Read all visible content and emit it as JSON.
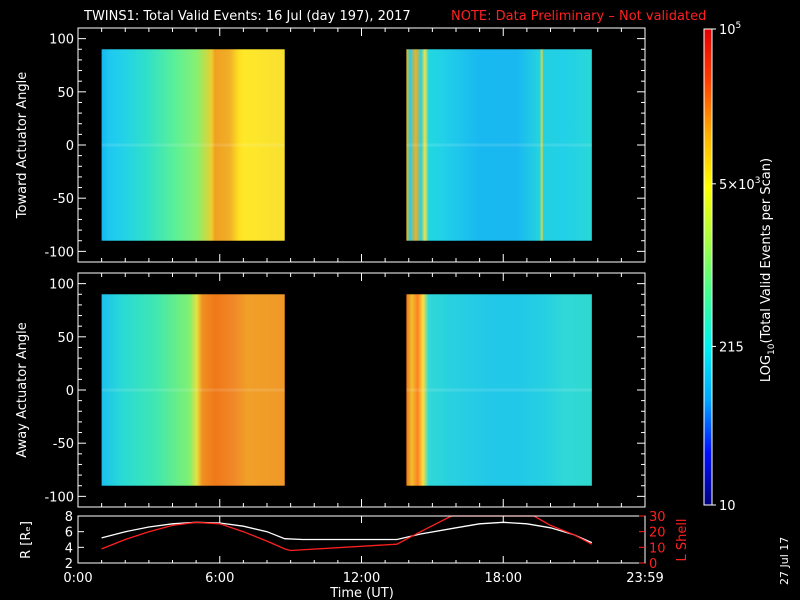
{
  "title": "TWINS1: Total Valid Events: 16 Jul (day 197), 2017",
  "note": "NOTE: Data Preliminary – Not validated",
  "footer_date": "27 Jul 17",
  "colors": {
    "note": "#ff2020",
    "line_red": "#ff2020",
    "line_white": "#ffffff",
    "background": "#000000"
  },
  "chart_data": [
    {
      "type": "heatmap",
      "ylabel": "Toward Actuator Angle",
      "ylim": [
        -110,
        110
      ],
      "yticks": [
        100,
        50,
        0,
        -50,
        -100
      ],
      "xlim": [
        0,
        24
      ],
      "grid": false,
      "segments": [
        {
          "x": [
            1.0,
            8.75
          ],
          "y": [
            -90,
            90
          ],
          "columns": [
            [
              0,
              "#16b8f0"
            ],
            [
              0.04,
              "#1ec8f0"
            ],
            [
              0.12,
              "#22d2e8"
            ],
            [
              0.25,
              "#30e0c8"
            ],
            [
              0.4,
              "#5af098"
            ],
            [
              0.52,
              "#88f070"
            ],
            [
              0.6,
              "#e8d030"
            ],
            [
              0.62,
              "#f0a020"
            ],
            [
              0.7,
              "#f0b028"
            ],
            [
              0.75,
              "#ffe020"
            ],
            [
              0.78,
              "#ffe82a"
            ],
            [
              1,
              "#f8e030"
            ]
          ]
        },
        {
          "x": [
            13.9,
            21.75
          ],
          "y": [
            -90,
            90
          ],
          "columns": [
            [
              0,
              "#e8c020"
            ],
            [
              0.02,
              "#30c8e0"
            ],
            [
              0.05,
              "#f0b020"
            ],
            [
              0.08,
              "#2ad0e0"
            ],
            [
              0.1,
              "#f8e040"
            ],
            [
              0.12,
              "#20d8e0"
            ],
            [
              0.2,
              "#22d0e8"
            ],
            [
              0.4,
              "#18b8f0"
            ],
            [
              0.6,
              "#1ab8f0"
            ],
            [
              0.72,
              "#24d4e0"
            ],
            [
              0.73,
              "#f0d030"
            ],
            [
              0.74,
              "#22d0e0"
            ],
            [
              0.85,
              "#22d0e8"
            ],
            [
              1,
              "#28d8d8"
            ]
          ]
        }
      ]
    },
    {
      "type": "heatmap",
      "ylabel": "Away Actuator Angle",
      "ylim": [
        -110,
        110
      ],
      "yticks": [
        100,
        50,
        0,
        -50,
        -100
      ],
      "xlim": [
        0,
        24
      ],
      "grid": false,
      "segments": [
        {
          "x": [
            1.0,
            8.75
          ],
          "y": [
            -90,
            90
          ],
          "columns": [
            [
              0,
              "#1cc0ee"
            ],
            [
              0.1,
              "#28d8d8"
            ],
            [
              0.3,
              "#40e8b0"
            ],
            [
              0.48,
              "#80f070"
            ],
            [
              0.52,
              "#e8e040"
            ],
            [
              0.55,
              "#f09020"
            ],
            [
              0.62,
              "#f07818"
            ],
            [
              0.72,
              "#f08828"
            ],
            [
              0.8,
              "#f0a028"
            ],
            [
              1,
              "#f09828"
            ]
          ]
        },
        {
          "x": [
            13.9,
            21.75
          ],
          "y": [
            -90,
            90
          ],
          "columns": [
            [
              0,
              "#f07818"
            ],
            [
              0.03,
              "#f0c030"
            ],
            [
              0.06,
              "#ff8020"
            ],
            [
              0.09,
              "#f8e040"
            ],
            [
              0.12,
              "#30d8d8"
            ],
            [
              0.25,
              "#28d0e0"
            ],
            [
              0.45,
              "#22c8e8"
            ],
            [
              0.6,
              "#22c8e8"
            ],
            [
              0.75,
              "#26d0e0"
            ],
            [
              0.85,
              "#30d8d8"
            ],
            [
              1,
              "#30d8d0"
            ]
          ]
        }
      ]
    },
    {
      "type": "line",
      "xlabel": "Time (UT)",
      "ylabel": "R [Rₑ]",
      "ylabel_right": "L Shell",
      "xlim": [
        0,
        24
      ],
      "xticks": [
        "0:00",
        "6:00",
        "12:00",
        "18:00",
        "23:59"
      ],
      "ylim": [
        2,
        8
      ],
      "yticks": [
        8,
        6,
        4,
        2
      ],
      "ylim_right": [
        0,
        30
      ],
      "yticks_right": [
        30,
        20,
        10,
        0
      ],
      "series": [
        {
          "name": "R [Rₑ]",
          "axis": "left",
          "color": "white",
          "x": [
            1,
            2,
            3,
            4,
            5,
            6,
            7,
            8,
            8.75,
            9.5,
            12,
            13.5,
            14.5,
            16,
            17,
            18,
            19,
            20,
            21,
            21.75
          ],
          "y": [
            5.2,
            6.0,
            6.6,
            7.0,
            7.2,
            7.1,
            6.7,
            6.0,
            5.1,
            5.0,
            5.0,
            5.0,
            5.7,
            6.5,
            7.0,
            7.2,
            7.0,
            6.5,
            5.6,
            4.6
          ]
        },
        {
          "name": "L Shell",
          "axis": "right",
          "color": "red",
          "x": [
            1,
            2,
            3,
            4,
            5,
            6,
            7,
            8,
            8.75,
            9.0,
            13.5,
            14.5,
            15.8,
            19.3,
            20,
            21,
            21.75
          ],
          "y": [
            9,
            15,
            20,
            24,
            26,
            25,
            20,
            14,
            9,
            8,
            12,
            20,
            30,
            30,
            24,
            18,
            12
          ]
        }
      ]
    },
    {
      "type": "colorbar",
      "label": "LOG10(Total Valid Events per Scan)",
      "ticks": [
        "10",
        "215",
        "5x10^3",
        "10^5"
      ],
      "tick_values": [
        10,
        215,
        5000,
        100000
      ],
      "scale": "log",
      "stops": [
        "#00007f",
        "#0010ff",
        "#00a8ff",
        "#00f0f0",
        "#40ff90",
        "#a8ff40",
        "#ffff00",
        "#ffb000",
        "#ff4000",
        "#e00000"
      ]
    }
  ]
}
